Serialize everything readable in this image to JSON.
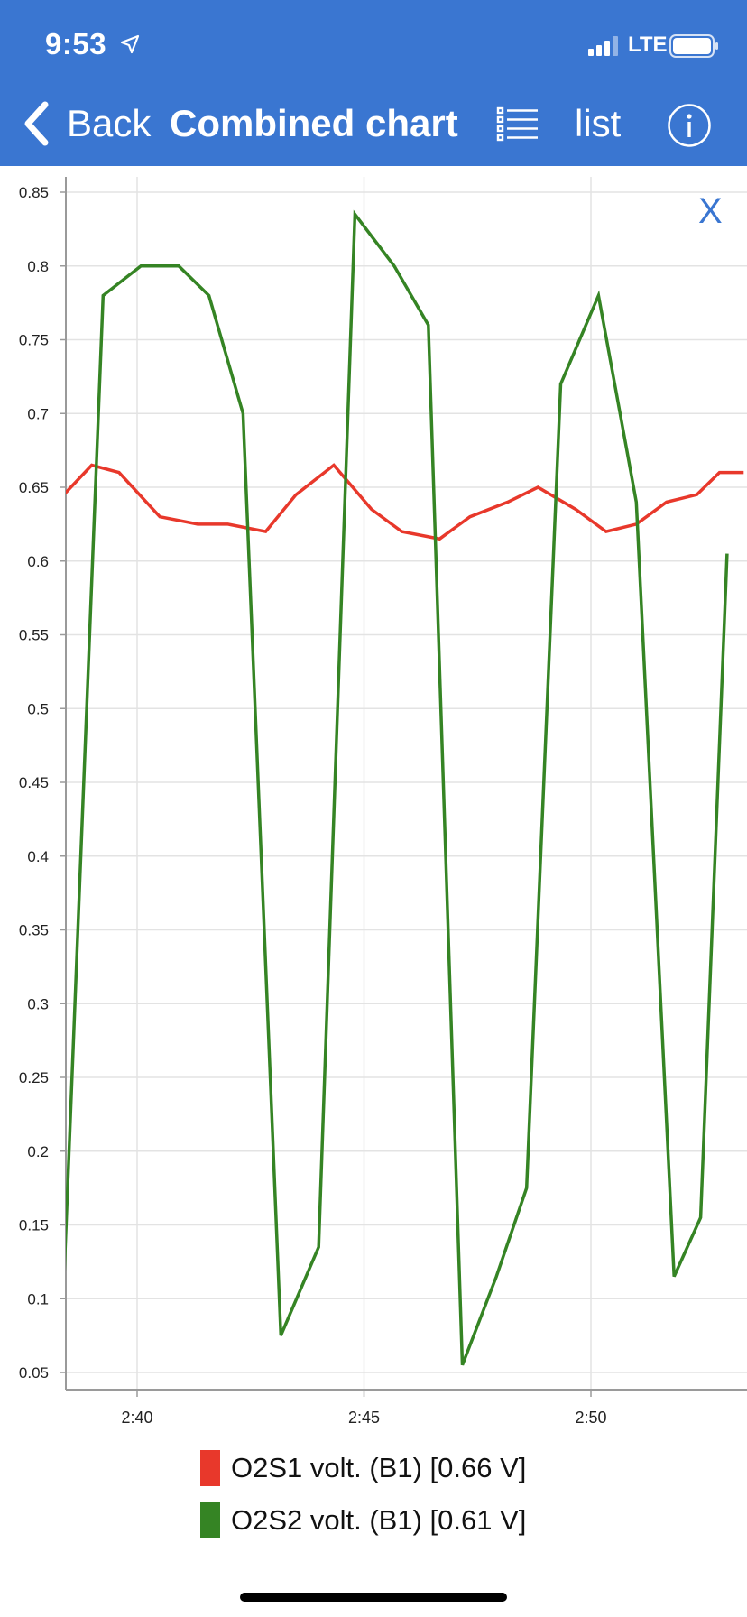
{
  "status_bar": {
    "time": "9:53",
    "network": "LTE",
    "icons": [
      "location-arrow-icon",
      "signal-bars-icon",
      "battery-icon"
    ]
  },
  "nav": {
    "back_label": "Back",
    "title": "Combined chart",
    "list_label": "list",
    "icons": [
      "chevron-left-icon",
      "list-icon",
      "info-icon"
    ]
  },
  "close_label": "X",
  "colors": {
    "header": "#3a76d1",
    "series1": "#e8382b",
    "series2": "#358424"
  },
  "chart_data": {
    "type": "line",
    "title": "",
    "xlabel": "",
    "ylabel": "",
    "xlim": [
      "2:38:23",
      "2:53:22"
    ],
    "ylim": [
      0.045,
      0.86
    ],
    "x_ticks": [
      "2:40",
      "2:45",
      "2:50"
    ],
    "y_ticks": [
      "0.05",
      "0.1",
      "0.15",
      "0.2",
      "0.25",
      "0.3",
      "0.35",
      "0.4",
      "0.45",
      "0.5",
      "0.55",
      "0.6",
      "0.65",
      "0.7",
      "0.75",
      "0.8",
      "0.85"
    ],
    "grid": true,
    "legend_position": "bottom",
    "series": [
      {
        "name": "O2S1 volt. (B1) [0.66 V]",
        "color": "#e8382b",
        "x": [
          "2:38:23",
          "2:39:00",
          "2:39:36",
          "2:40:30",
          "2:41:20",
          "2:42:00",
          "2:42:50",
          "2:43:30",
          "2:44:20",
          "2:45:10",
          "2:45:50",
          "2:46:40",
          "2:47:20",
          "2:48:10",
          "2:48:50",
          "2:49:40",
          "2:50:20",
          "2:51:00",
          "2:51:40",
          "2:52:20",
          "2:52:50",
          "2:53:22"
        ],
        "y": [
          0.645,
          0.665,
          0.66,
          0.63,
          0.625,
          0.625,
          0.62,
          0.645,
          0.665,
          0.635,
          0.62,
          0.615,
          0.63,
          0.64,
          0.65,
          0.635,
          0.62,
          0.625,
          0.64,
          0.645,
          0.66,
          0.66
        ]
      },
      {
        "name": "O2S2 volt. (B1) [0.61 V]",
        "color": "#358424",
        "x": [
          "2:38:23",
          "2:39:15",
          "2:40:05",
          "2:40:55",
          "2:41:35",
          "2:42:20",
          "2:43:10",
          "2:44:00",
          "2:44:48",
          "2:45:40",
          "2:46:25",
          "2:47:10",
          "2:47:55",
          "2:48:35",
          "2:49:20",
          "2:50:10",
          "2:51:00",
          "2:51:50",
          "2:52:25",
          "2:53:00"
        ],
        "y": [
          0.11,
          0.78,
          0.8,
          0.8,
          0.78,
          0.7,
          0.075,
          0.135,
          0.835,
          0.8,
          0.76,
          0.055,
          0.115,
          0.175,
          0.72,
          0.78,
          0.64,
          0.115,
          0.155,
          0.605
        ]
      }
    ]
  }
}
